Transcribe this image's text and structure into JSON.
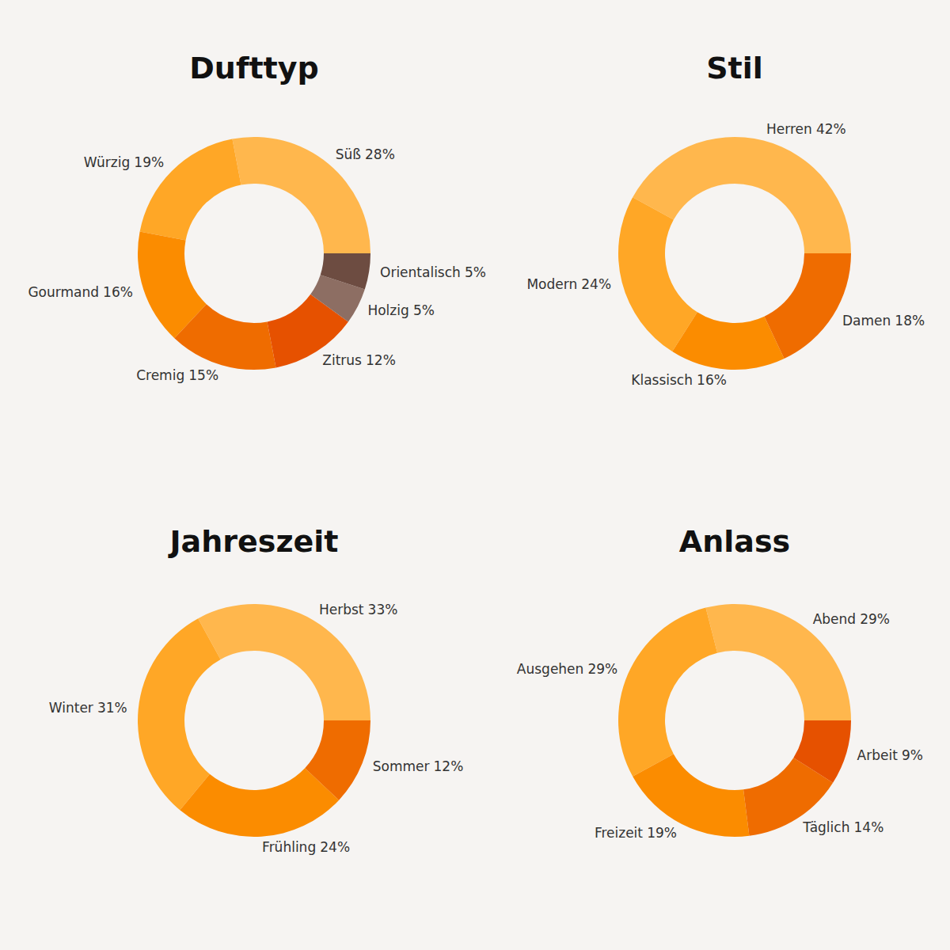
{
  "chart_data": [
    {
      "type": "donut",
      "title": "Dufttyp",
      "categories": [
        "Süß",
        "Würzig",
        "Gourmand",
        "Cremig",
        "Zitrus",
        "Holzig",
        "Orientalisch"
      ],
      "values": [
        28,
        19,
        16,
        15,
        12,
        5,
        5
      ],
      "value_labels": [
        "28%",
        "19%",
        "16%",
        "15%",
        "12%",
        "5%",
        "5%"
      ],
      "colors": [
        "#ffb74d",
        "#ffa726",
        "#fb8c00",
        "#ef6c00",
        "#e65100",
        "#8d6e63",
        "#6d4c41"
      ],
      "data_labels": true
    },
    {
      "type": "donut",
      "title": "Stil",
      "categories": [
        "Herren",
        "Modern",
        "Klassisch",
        "Damen"
      ],
      "values": [
        42,
        24,
        16,
        18
      ],
      "value_labels": [
        "42%",
        "24%",
        "16%",
        "18%"
      ],
      "colors": [
        "#ffb74d",
        "#ffa726",
        "#fb8c00",
        "#ef6c00"
      ],
      "data_labels": true
    },
    {
      "type": "donut",
      "title": "Jahreszeit",
      "categories": [
        "Herbst",
        "Winter",
        "Frühling",
        "Sommer"
      ],
      "values": [
        33,
        31,
        24,
        12
      ],
      "value_labels": [
        "33%",
        "31%",
        "24%",
        "12%"
      ],
      "colors": [
        "#ffb74d",
        "#ffa726",
        "#fb8c00",
        "#ef6c00"
      ],
      "data_labels": true
    },
    {
      "type": "donut",
      "title": "Anlass",
      "categories": [
        "Abend",
        "Ausgehen",
        "Freizeit",
        "Täglich",
        "Arbeit"
      ],
      "values": [
        29,
        29,
        19,
        14,
        9
      ],
      "value_labels": [
        "29%",
        "29%",
        "19%",
        "14%",
        "9%"
      ],
      "colors": [
        "#ffb74d",
        "#ffa726",
        "#fb8c00",
        "#ef6c00",
        "#e65100"
      ],
      "data_labels": true
    }
  ]
}
